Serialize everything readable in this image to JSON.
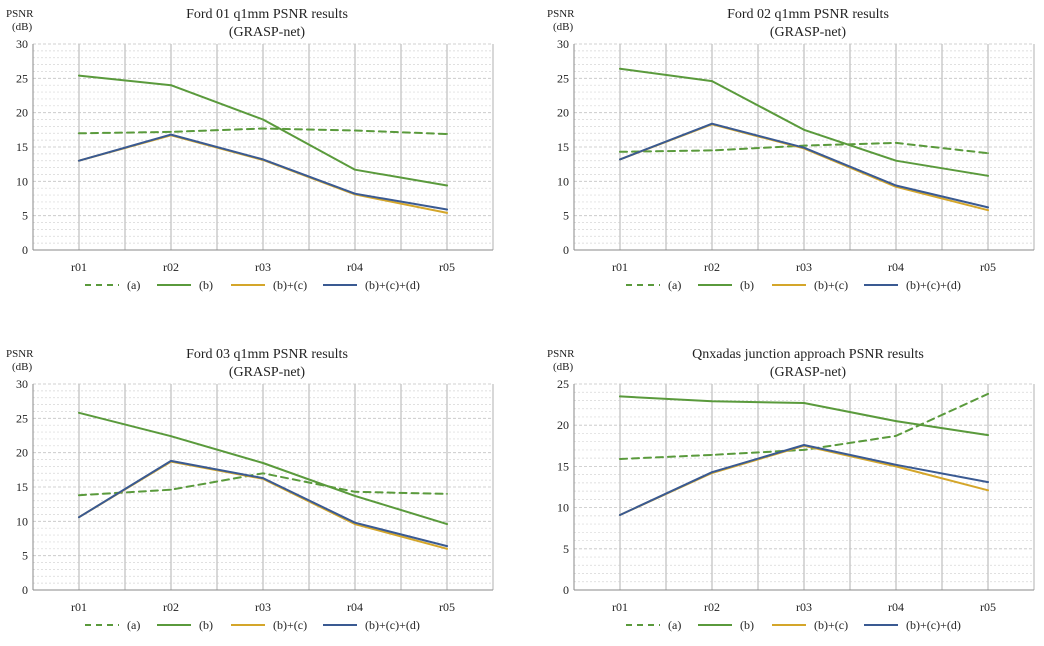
{
  "colors": {
    "a": "#5a9a3c",
    "b": "#5a9a3c",
    "bc": "#d4a62a",
    "bcd": "#3a5a92",
    "grid_minor": "#d6d6d6",
    "grid_major": "#c4c4c4",
    "axis": "#8a8a8a"
  },
  "chart_data": [
    {
      "type": "line",
      "title": "Ford 01 q1mm PSNR results",
      "subtitle": "(GRASP-net)",
      "ylabel": "PSNR",
      "yunit": "(dB)",
      "xlabel": "",
      "categories": [
        "r01",
        "r02",
        "r03",
        "r04",
        "r05"
      ],
      "ylim": [
        0,
        30
      ],
      "yticks": [
        0,
        5,
        10,
        15,
        20,
        25,
        30
      ],
      "series": [
        {
          "key": "a",
          "name": "(a)",
          "dashed": true,
          "values": [
            17.0,
            17.2,
            17.7,
            17.4,
            16.9
          ]
        },
        {
          "key": "b",
          "name": "(b)",
          "dashed": false,
          "values": [
            25.4,
            24.0,
            19.0,
            11.7,
            9.4
          ]
        },
        {
          "key": "bc",
          "name": "(b)+(c)",
          "dashed": false,
          "values": [
            13.0,
            16.7,
            13.1,
            8.1,
            5.4
          ]
        },
        {
          "key": "bcd",
          "name": "(b)+(c)+(d)",
          "dashed": false,
          "values": [
            13.0,
            16.8,
            13.2,
            8.2,
            5.9
          ]
        }
      ]
    },
    {
      "type": "line",
      "title": "Ford 02 q1mm PSNR results",
      "subtitle": "(GRASP-net)",
      "ylabel": "PSNR",
      "yunit": "(dB)",
      "xlabel": "",
      "categories": [
        "r01",
        "r02",
        "r03",
        "r04",
        "r05"
      ],
      "ylim": [
        0,
        30
      ],
      "yticks": [
        0,
        5,
        10,
        15,
        20,
        25,
        30
      ],
      "series": [
        {
          "key": "a",
          "name": "(a)",
          "dashed": true,
          "values": [
            14.3,
            14.5,
            15.2,
            15.6,
            14.1
          ]
        },
        {
          "key": "b",
          "name": "(b)",
          "dashed": false,
          "values": [
            26.4,
            24.6,
            17.5,
            13.0,
            10.8
          ]
        },
        {
          "key": "bc",
          "name": "(b)+(c)",
          "dashed": false,
          "values": [
            13.2,
            18.3,
            14.8,
            9.2,
            5.8
          ]
        },
        {
          "key": "bcd",
          "name": "(b)+(c)+(d)",
          "dashed": false,
          "values": [
            13.2,
            18.4,
            14.9,
            9.4,
            6.2
          ]
        }
      ]
    },
    {
      "type": "line",
      "title": "Ford 03 q1mm PSNR results",
      "subtitle": "(GRASP-net)",
      "ylabel": "PSNR",
      "yunit": "(dB)",
      "xlabel": "",
      "categories": [
        "r01",
        "r02",
        "r03",
        "r04",
        "r05"
      ],
      "ylim": [
        0,
        30
      ],
      "yticks": [
        0,
        5,
        10,
        15,
        20,
        25,
        30
      ],
      "series": [
        {
          "key": "a",
          "name": "(a)",
          "dashed": true,
          "values": [
            13.8,
            14.6,
            17.0,
            14.3,
            14.0
          ]
        },
        {
          "key": "b",
          "name": "(b)",
          "dashed": false,
          "values": [
            25.8,
            22.4,
            18.5,
            13.7,
            9.6
          ]
        },
        {
          "key": "bc",
          "name": "(b)+(c)",
          "dashed": false,
          "values": [
            10.6,
            18.7,
            16.2,
            9.6,
            6.0
          ]
        },
        {
          "key": "bcd",
          "name": "(b)+(c)+(d)",
          "dashed": false,
          "values": [
            10.6,
            18.8,
            16.3,
            9.8,
            6.4
          ]
        }
      ]
    },
    {
      "type": "line",
      "title": "Qnxadas junction approach PSNR results",
      "subtitle": "(GRASP-net)",
      "ylabel": "PSNR",
      "yunit": "(dB)",
      "xlabel": "",
      "categories": [
        "r01",
        "r02",
        "r03",
        "r04",
        "r05"
      ],
      "ylim": [
        0,
        25
      ],
      "yticks": [
        0,
        5,
        10,
        15,
        20,
        25
      ],
      "series": [
        {
          "key": "a",
          "name": "(a)",
          "dashed": true,
          "values": [
            15.9,
            16.4,
            17.0,
            18.7,
            23.8
          ]
        },
        {
          "key": "b",
          "name": "(b)",
          "dashed": false,
          "values": [
            23.5,
            22.9,
            22.7,
            20.5,
            18.8
          ]
        },
        {
          "key": "bc",
          "name": "(b)+(c)",
          "dashed": false,
          "values": [
            9.1,
            14.2,
            17.5,
            15.0,
            12.1
          ]
        },
        {
          "key": "bcd",
          "name": "(b)+(c)+(d)",
          "dashed": false,
          "values": [
            9.1,
            14.3,
            17.6,
            15.2,
            13.1
          ]
        }
      ]
    }
  ]
}
